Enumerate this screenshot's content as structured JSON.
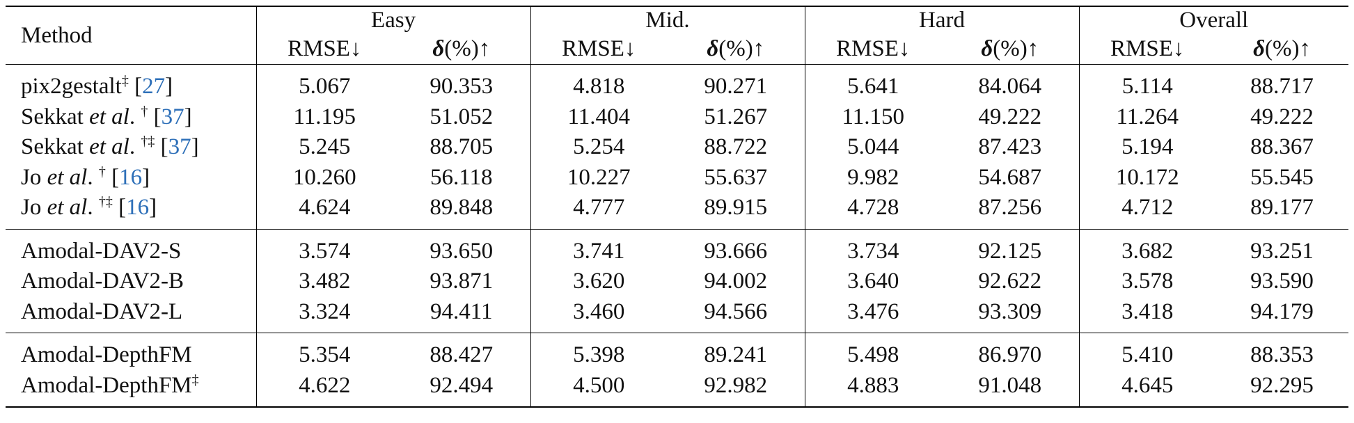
{
  "table": {
    "header": {
      "method": "Method",
      "groups": [
        "Easy",
        "Mid.",
        "Hard",
        "Overall"
      ],
      "metric_rmse": "RMSE↓",
      "metric_delta_sym": "δ",
      "metric_delta_rest": "(%)↑"
    },
    "sections": [
      {
        "rows": [
          {
            "name_pre": "pix2gestalt",
            "name_it": "",
            "name_post": "",
            "sup": "‡",
            "ref": "27",
            "values": [
              "5.067",
              "90.353",
              "4.818",
              "90.271",
              "5.641",
              "84.064",
              "5.114",
              "88.717"
            ]
          },
          {
            "name_pre": "Sekkat ",
            "name_it": "et al",
            "name_post": ". ",
            "sup": "†",
            "ref": "37",
            "values": [
              "11.195",
              "51.052",
              "11.404",
              "51.267",
              "11.150",
              "49.222",
              "11.264",
              "49.222"
            ]
          },
          {
            "name_pre": "Sekkat ",
            "name_it": "et al",
            "name_post": ". ",
            "sup": "†‡",
            "ref": "37",
            "values": [
              "5.245",
              "88.705",
              "5.254",
              "88.722",
              "5.044",
              "87.423",
              "5.194",
              "88.367"
            ]
          },
          {
            "name_pre": "Jo ",
            "name_it": "et al",
            "name_post": ". ",
            "sup": "†",
            "ref": "16",
            "values": [
              "10.260",
              "56.118",
              "10.227",
              "55.637",
              "9.982",
              "54.687",
              "10.172",
              "55.545"
            ]
          },
          {
            "name_pre": "Jo ",
            "name_it": "et al",
            "name_post": ". ",
            "sup": "†‡",
            "ref": "16",
            "values": [
              "4.624",
              "89.848",
              "4.777",
              "89.915",
              "4.728",
              "87.256",
              "4.712",
              "89.177"
            ]
          }
        ]
      },
      {
        "rows": [
          {
            "name_pre": "Amodal-DAV2-S",
            "name_it": "",
            "name_post": "",
            "sup": "",
            "ref": "",
            "values": [
              "3.574",
              "93.650",
              "3.741",
              "93.666",
              "3.734",
              "92.125",
              "3.682",
              "93.251"
            ]
          },
          {
            "name_pre": "Amodal-DAV2-B",
            "name_it": "",
            "name_post": "",
            "sup": "",
            "ref": "",
            "values": [
              "3.482",
              "93.871",
              "3.620",
              "94.002",
              "3.640",
              "92.622",
              "3.578",
              "93.590"
            ]
          },
          {
            "name_pre": "Amodal-DAV2-L",
            "name_it": "",
            "name_post": "",
            "sup": "",
            "ref": "",
            "bold": true,
            "values": [
              "3.324",
              "94.411",
              "3.460",
              "94.566",
              "3.476",
              "93.309",
              "3.418",
              "94.179"
            ]
          }
        ]
      },
      {
        "rows": [
          {
            "name_pre": "Amodal-DepthFM",
            "name_it": "",
            "name_post": "",
            "sup": "",
            "ref": "",
            "values": [
              "5.354",
              "88.427",
              "5.398",
              "89.241",
              "5.498",
              "86.970",
              "5.410",
              "88.353"
            ]
          },
          {
            "name_pre": "Amodal-DepthFM",
            "name_it": "",
            "name_post": "",
            "sup": "‡",
            "ref": "",
            "values": [
              "4.622",
              "92.494",
              "4.500",
              "92.982",
              "4.883",
              "91.048",
              "4.645",
              "92.295"
            ]
          }
        ]
      }
    ]
  }
}
